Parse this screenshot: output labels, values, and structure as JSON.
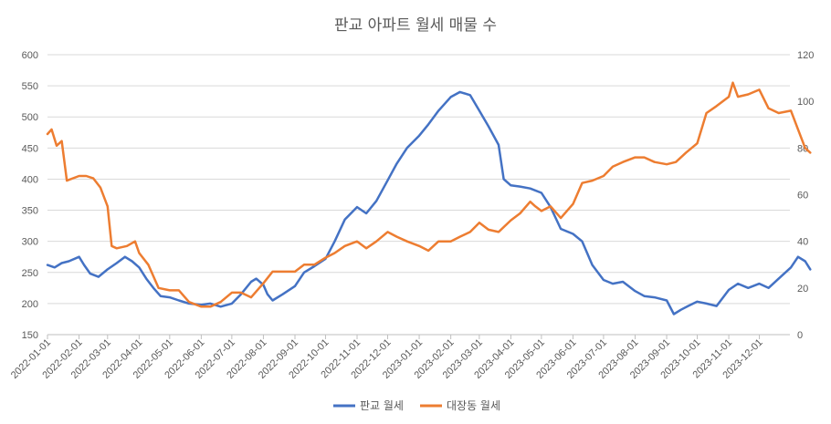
{
  "chart_data": {
    "type": "line",
    "title": "판교 아파트 월세 매물 수",
    "x_ticks": [
      "2022-01-01",
      "2022-02-01",
      "2022-03-01",
      "2022-04-01",
      "2022-05-01",
      "2022-06-01",
      "2022-07-01",
      "2022-08-01",
      "2022-09-01",
      "2022-10-01",
      "2022-11-01",
      "2022-12-01",
      "2023-01-01",
      "2023-02-01",
      "2023-03-01",
      "2023-04-01",
      "2023-05-01",
      "2023-06-01",
      "2023-07-01",
      "2023-08-01",
      "2023-09-01",
      "2023-10-01",
      "2023-11-01",
      "2023-12-01"
    ],
    "x_range": [
      "2022-01-01",
      "2023-12-31"
    ],
    "y_left": {
      "min": 150,
      "max": 600,
      "step": 50,
      "ticks": [
        "150",
        "200",
        "250",
        "300",
        "350",
        "400",
        "450",
        "500",
        "550",
        "600"
      ]
    },
    "y_right": {
      "min": 0,
      "max": 120,
      "step": 20,
      "ticks": [
        "0",
        "20",
        "40",
        "60",
        "80",
        "100",
        "120"
      ]
    },
    "grid": true,
    "legend_position": "bottom",
    "series": [
      {
        "name": "판교 월세",
        "axis": "left",
        "color": "#4472C4",
        "points": [
          [
            "2022-01-01",
            262
          ],
          [
            "2022-01-08",
            258
          ],
          [
            "2022-01-15",
            265
          ],
          [
            "2022-01-22",
            268
          ],
          [
            "2022-02-01",
            275
          ],
          [
            "2022-02-06",
            262
          ],
          [
            "2022-02-12",
            248
          ],
          [
            "2022-02-20",
            243
          ],
          [
            "2022-03-01",
            255
          ],
          [
            "2022-03-10",
            265
          ],
          [
            "2022-03-18",
            275
          ],
          [
            "2022-03-25",
            268
          ],
          [
            "2022-04-01",
            258
          ],
          [
            "2022-04-08",
            240
          ],
          [
            "2022-04-15",
            225
          ],
          [
            "2022-04-22",
            212
          ],
          [
            "2022-05-01",
            210
          ],
          [
            "2022-05-10",
            205
          ],
          [
            "2022-05-20",
            200
          ],
          [
            "2022-06-01",
            198
          ],
          [
            "2022-06-10",
            200
          ],
          [
            "2022-06-20",
            195
          ],
          [
            "2022-07-01",
            200
          ],
          [
            "2022-07-10",
            215
          ],
          [
            "2022-07-20",
            235
          ],
          [
            "2022-07-25",
            240
          ],
          [
            "2022-08-01",
            230
          ],
          [
            "2022-08-05",
            215
          ],
          [
            "2022-08-10",
            205
          ],
          [
            "2022-08-20",
            215
          ],
          [
            "2022-09-01",
            228
          ],
          [
            "2022-09-10",
            250
          ],
          [
            "2022-09-20",
            260
          ],
          [
            "2022-10-01",
            272
          ],
          [
            "2022-10-10",
            300
          ],
          [
            "2022-10-20",
            335
          ],
          [
            "2022-11-01",
            355
          ],
          [
            "2022-11-10",
            345
          ],
          [
            "2022-11-20",
            365
          ],
          [
            "2022-12-01",
            398
          ],
          [
            "2022-12-10",
            425
          ],
          [
            "2022-12-20",
            450
          ],
          [
            "2023-01-01",
            470
          ],
          [
            "2023-01-10",
            488
          ],
          [
            "2023-01-20",
            510
          ],
          [
            "2023-02-01",
            532
          ],
          [
            "2023-02-10",
            540
          ],
          [
            "2023-02-20",
            535
          ],
          [
            "2023-03-01",
            510
          ],
          [
            "2023-03-10",
            485
          ],
          [
            "2023-03-20",
            455
          ],
          [
            "2023-03-25",
            400
          ],
          [
            "2023-04-01",
            390
          ],
          [
            "2023-04-10",
            388
          ],
          [
            "2023-04-20",
            385
          ],
          [
            "2023-05-01",
            378
          ],
          [
            "2023-05-10",
            355
          ],
          [
            "2023-05-20",
            320
          ],
          [
            "2023-06-01",
            312
          ],
          [
            "2023-06-10",
            300
          ],
          [
            "2023-06-20",
            262
          ],
          [
            "2023-07-01",
            238
          ],
          [
            "2023-07-10",
            232
          ],
          [
            "2023-07-20",
            235
          ],
          [
            "2023-08-01",
            220
          ],
          [
            "2023-08-10",
            212
          ],
          [
            "2023-08-20",
            210
          ],
          [
            "2023-09-01",
            205
          ],
          [
            "2023-09-08",
            183
          ],
          [
            "2023-09-15",
            190
          ],
          [
            "2023-09-22",
            196
          ],
          [
            "2023-10-01",
            203
          ],
          [
            "2023-10-10",
            200
          ],
          [
            "2023-10-20",
            196
          ],
          [
            "2023-11-01",
            222
          ],
          [
            "2023-11-10",
            232
          ],
          [
            "2023-11-20",
            225
          ],
          [
            "2023-12-01",
            232
          ],
          [
            "2023-12-10",
            225
          ],
          [
            "2023-12-20",
            240
          ],
          [
            "2024-01-01",
            258
          ],
          [
            "2024-01-08",
            275
          ],
          [
            "2024-01-15",
            268
          ],
          [
            "2024-01-20",
            255
          ]
        ]
      },
      {
        "name": "대장동 월세",
        "axis": "right",
        "color": "#ED7D31",
        "points": [
          [
            "2022-01-01",
            86
          ],
          [
            "2022-01-05",
            88
          ],
          [
            "2022-01-10",
            81
          ],
          [
            "2022-01-15",
            83
          ],
          [
            "2022-01-20",
            66
          ],
          [
            "2022-02-01",
            68
          ],
          [
            "2022-02-08",
            68
          ],
          [
            "2022-02-15",
            67
          ],
          [
            "2022-02-22",
            63
          ],
          [
            "2022-03-01",
            55
          ],
          [
            "2022-03-05",
            38
          ],
          [
            "2022-03-10",
            37
          ],
          [
            "2022-03-20",
            38
          ],
          [
            "2022-03-28",
            40
          ],
          [
            "2022-04-01",
            35
          ],
          [
            "2022-04-10",
            30
          ],
          [
            "2022-04-20",
            20
          ],
          [
            "2022-05-01",
            19
          ],
          [
            "2022-05-10",
            19
          ],
          [
            "2022-05-20",
            14
          ],
          [
            "2022-06-01",
            12
          ],
          [
            "2022-06-10",
            12
          ],
          [
            "2022-06-20",
            14
          ],
          [
            "2022-07-01",
            18
          ],
          [
            "2022-07-10",
            18
          ],
          [
            "2022-07-20",
            16
          ],
          [
            "2022-08-01",
            22
          ],
          [
            "2022-08-10",
            27
          ],
          [
            "2022-08-20",
            27
          ],
          [
            "2022-09-01",
            27
          ],
          [
            "2022-09-10",
            30
          ],
          [
            "2022-09-20",
            30
          ],
          [
            "2022-10-01",
            33
          ],
          [
            "2022-10-10",
            35
          ],
          [
            "2022-10-20",
            38
          ],
          [
            "2022-11-01",
            40
          ],
          [
            "2022-11-10",
            37
          ],
          [
            "2022-11-20",
            40
          ],
          [
            "2022-12-01",
            44
          ],
          [
            "2022-12-10",
            42
          ],
          [
            "2022-12-20",
            40
          ],
          [
            "2023-01-01",
            38
          ],
          [
            "2023-01-10",
            36
          ],
          [
            "2023-01-20",
            40
          ],
          [
            "2023-02-01",
            40
          ],
          [
            "2023-02-10",
            42
          ],
          [
            "2023-02-20",
            44
          ],
          [
            "2023-03-01",
            48
          ],
          [
            "2023-03-10",
            45
          ],
          [
            "2023-03-20",
            44
          ],
          [
            "2023-04-01",
            49
          ],
          [
            "2023-04-10",
            52
          ],
          [
            "2023-04-20",
            57
          ],
          [
            "2023-04-25",
            55
          ],
          [
            "2023-05-01",
            53
          ],
          [
            "2023-05-10",
            55
          ],
          [
            "2023-05-20",
            50
          ],
          [
            "2023-06-01",
            56
          ],
          [
            "2023-06-10",
            65
          ],
          [
            "2023-06-20",
            66
          ],
          [
            "2023-07-01",
            68
          ],
          [
            "2023-07-10",
            72
          ],
          [
            "2023-07-20",
            74
          ],
          [
            "2023-08-01",
            76
          ],
          [
            "2023-08-10",
            76
          ],
          [
            "2023-08-20",
            74
          ],
          [
            "2023-09-01",
            73
          ],
          [
            "2023-09-10",
            74
          ],
          [
            "2023-09-20",
            78
          ],
          [
            "2023-10-01",
            82
          ],
          [
            "2023-10-10",
            95
          ],
          [
            "2023-10-20",
            98
          ],
          [
            "2023-11-01",
            102
          ],
          [
            "2023-11-05",
            108
          ],
          [
            "2023-11-10",
            102
          ],
          [
            "2023-11-20",
            103
          ],
          [
            "2023-12-01",
            105
          ],
          [
            "2023-12-10",
            97
          ],
          [
            "2023-12-20",
            95
          ],
          [
            "2024-01-01",
            96
          ],
          [
            "2024-01-08",
            88
          ],
          [
            "2024-01-15",
            80
          ],
          [
            "2024-01-20",
            78
          ]
        ]
      }
    ]
  }
}
